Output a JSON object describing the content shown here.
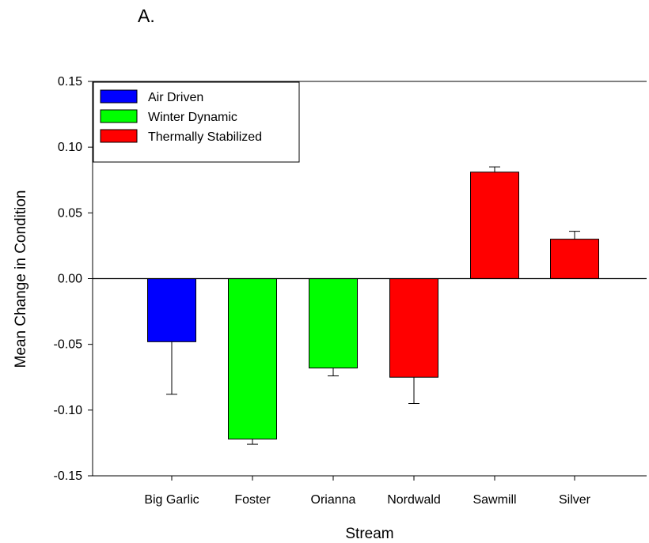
{
  "panel_label": "A.",
  "colors": {
    "Air Driven": "#0000ff",
    "Winter Dynamic": "#00ff00",
    "Thermally Stabilized": "#ff0000"
  },
  "chart_data": {
    "type": "bar",
    "title": "",
    "xlabel": "Stream",
    "ylabel": "Mean Change in Condition",
    "ylim": [
      -0.15,
      0.15
    ],
    "yticks": [
      -0.15,
      -0.1,
      -0.05,
      0.0,
      0.05,
      0.1,
      0.15
    ],
    "ytick_labels": [
      "-0.15",
      "-0.10",
      "-0.05",
      "0.00",
      "0.05",
      "0.10",
      "0.15"
    ],
    "grid": false,
    "legend_position": "top-left",
    "legend": [
      "Air Driven",
      "Winter Dynamic",
      "Thermally Stabilized"
    ],
    "categories": [
      "Big Garlic",
      "Foster",
      "Orianna",
      "Nordwald",
      "Sawmill",
      "Silver"
    ],
    "values": [
      -0.048,
      -0.122,
      -0.068,
      -0.075,
      0.081,
      0.03
    ],
    "errors": [
      0.04,
      0.004,
      0.006,
      0.02,
      0.004,
      0.006
    ],
    "groups": [
      "Air Driven",
      "Winter Dynamic",
      "Winter Dynamic",
      "Thermally Stabilized",
      "Thermally Stabilized",
      "Thermally Stabilized"
    ]
  }
}
